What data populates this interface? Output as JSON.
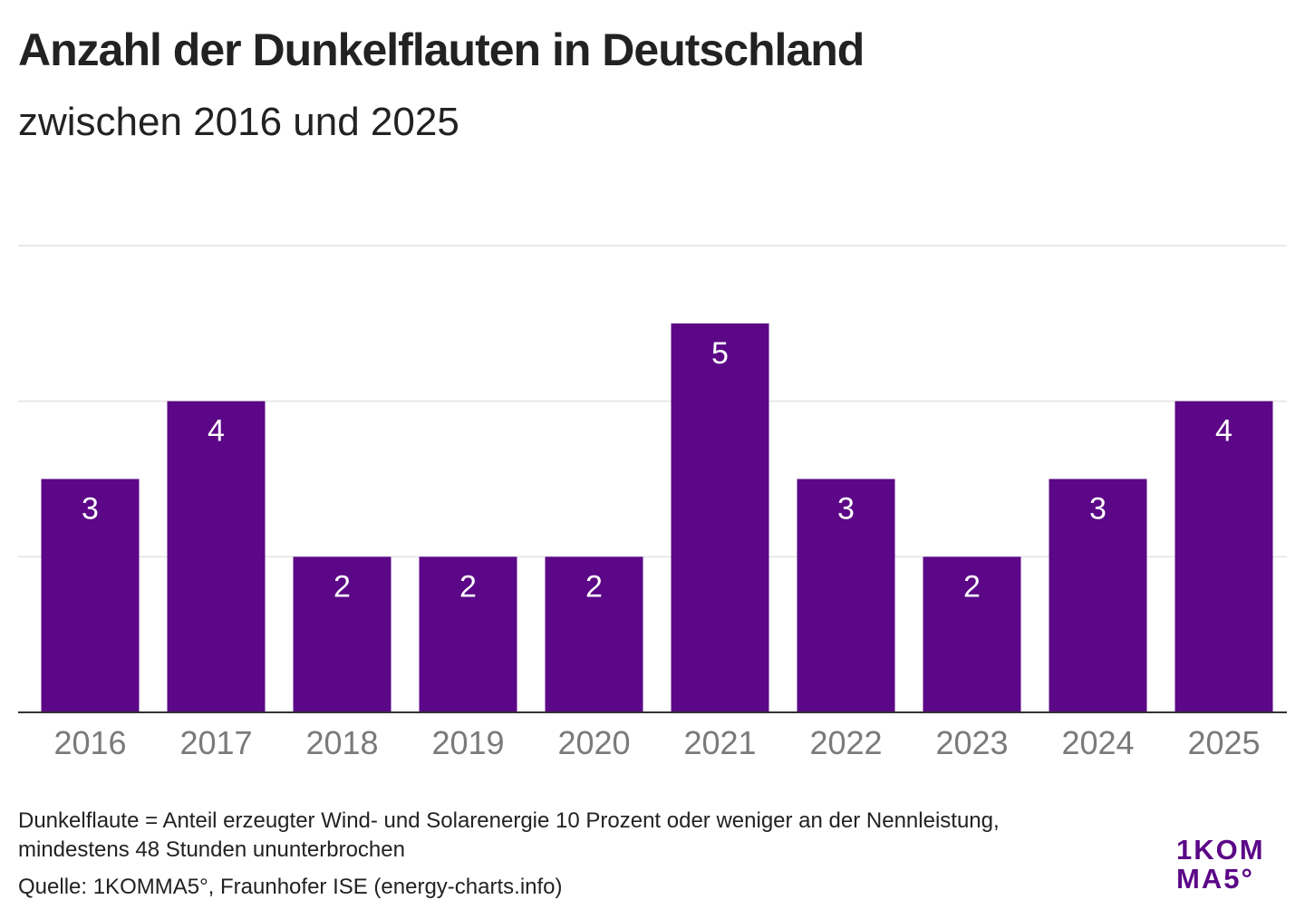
{
  "chart_data": {
    "type": "bar",
    "title": "Anzahl der Dunkelflauten in Deutschland",
    "subtitle": "zwischen 2016 und 2025",
    "categories": [
      "2016",
      "2017",
      "2018",
      "2019",
      "2020",
      "2021",
      "2022",
      "2023",
      "2024",
      "2025"
    ],
    "values": [
      3,
      4,
      2,
      2,
      2,
      5,
      3,
      2,
      3,
      4
    ],
    "ylim": [
      0,
      6
    ],
    "gridlines": [
      0,
      2,
      4,
      6
    ],
    "grid": true,
    "bar_color": "#5b0787",
    "data_labels": true
  },
  "notes": {
    "definition_line1": "Dunkelflaute = Anteil erzeugter Wind- und Solarenergie 10 Prozent oder weniger an der Nennleistung,",
    "definition_line2": "mindestens 48 Stunden ununterbrochen",
    "source": "Quelle: 1KOMMA5°, Fraunhofer ISE (energy-charts.info)"
  },
  "logo": {
    "line1": "1KOM",
    "line2": "MA5°"
  }
}
